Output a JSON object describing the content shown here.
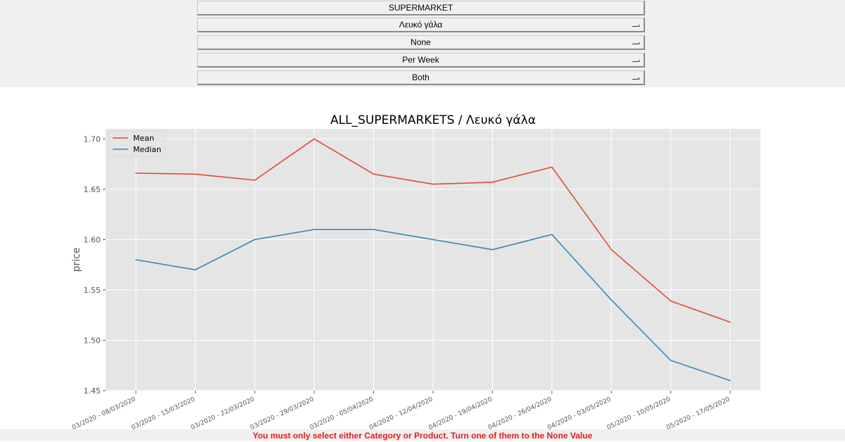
{
  "controls": {
    "store_label": "SUPERMARKET",
    "product_value": "Λευκό γάλα",
    "category_value": "None",
    "period_value": "Per Week",
    "stat_value": "Both"
  },
  "status_message": "You must only select either Category or Product. Turn one of them to the None Value",
  "colors": {
    "mean": "#e24a33",
    "median": "#348abd",
    "plot_bg": "#e5e5e5",
    "status": "#e41a1c"
  },
  "chart_data": {
    "type": "line",
    "title": "ALL_SUPERMARKETS / Λευκό γάλα",
    "xlabel": "",
    "ylabel": "price",
    "ylim": [
      1.45,
      1.71
    ],
    "yticks": [
      "1.45",
      "1.50",
      "1.55",
      "1.60",
      "1.65",
      "1.70"
    ],
    "grid": true,
    "legend_position": "top-left",
    "categories": [
      "03/2020 - 08/03/2020",
      "03/2020 - 15/03/2020",
      "03/2020 - 22/03/2020",
      "03/2020 - 29/03/2020",
      "03/2020 - 05/04/2020",
      "04/2020 - 12/04/2020",
      "04/2020 - 19/04/2020",
      "04/2020 - 26/04/2020",
      "04/2020 - 03/05/2020",
      "05/2020 - 10/05/2020",
      "05/2020 - 17/05/2020"
    ],
    "series": [
      {
        "name": "Mean",
        "values": [
          1.666,
          1.665,
          1.659,
          1.7,
          1.665,
          1.655,
          1.657,
          1.672,
          1.59,
          1.539,
          1.518
        ]
      },
      {
        "name": "Median",
        "values": [
          1.58,
          1.57,
          1.6,
          1.61,
          1.61,
          1.6,
          1.59,
          1.605,
          1.54,
          1.48,
          1.46
        ]
      }
    ]
  }
}
